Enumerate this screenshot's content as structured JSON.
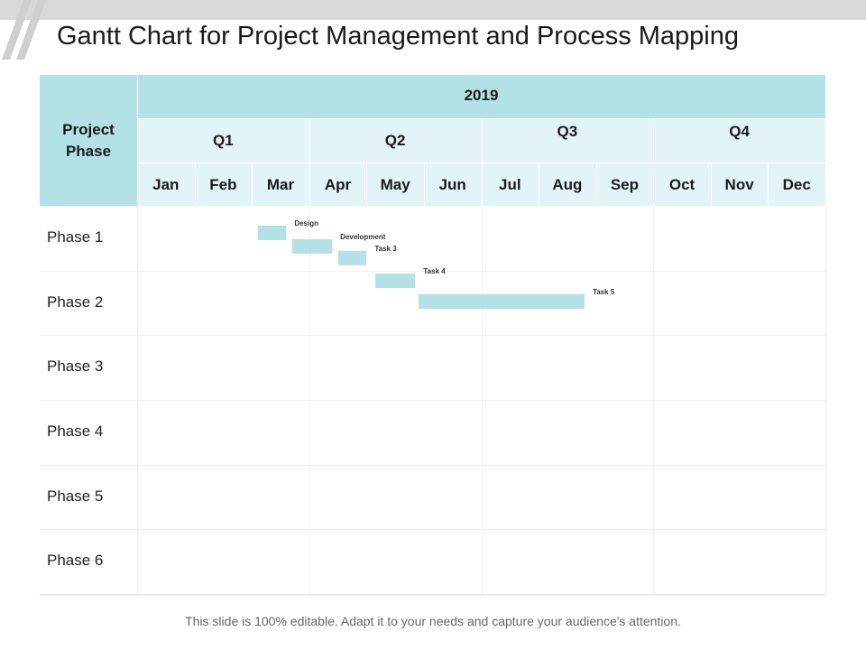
{
  "title": "Gantt Chart for Project Management and Process Mapping",
  "footer": "This slide is 100% editable. Adapt it to your needs and capture your audience's attention.",
  "chart_data": {
    "type": "gantt",
    "row_header": "Project Phase",
    "year": "2019",
    "quarters": [
      "Q1",
      "Q2",
      "Q3",
      "Q4"
    ],
    "months": [
      "Jan",
      "Feb",
      "Mar",
      "Apr",
      "May",
      "Jun",
      "Jul",
      "Aug",
      "Sep",
      "Oct",
      "Nov",
      "Dec"
    ],
    "phases": [
      "Phase 1",
      "Phase 2",
      "Phase 3",
      "Phase 4",
      "Phase 5",
      "Phase 6"
    ],
    "tasks": [
      {
        "name": "Design",
        "phase": "Phase 1",
        "start_month": 3.1,
        "end_month": 3.6
      },
      {
        "name": "Development",
        "phase": "Phase 1",
        "start_month": 3.7,
        "end_month": 4.4
      },
      {
        "name": "Task 3",
        "phase": "Phase 1",
        "start_month": 4.5,
        "end_month": 5.0
      },
      {
        "name": "Task 4",
        "phase": "Phase 2",
        "start_month": 5.15,
        "end_month": 5.85
      },
      {
        "name": "Task 5",
        "phase": "Phase 2",
        "start_month": 5.9,
        "end_month": 8.8
      }
    ],
    "colors": {
      "header_dark": "#b2e1e6",
      "header_light": "#e2f4f6",
      "bar": "#b3e1e6",
      "grid": "#eeeeee"
    }
  }
}
